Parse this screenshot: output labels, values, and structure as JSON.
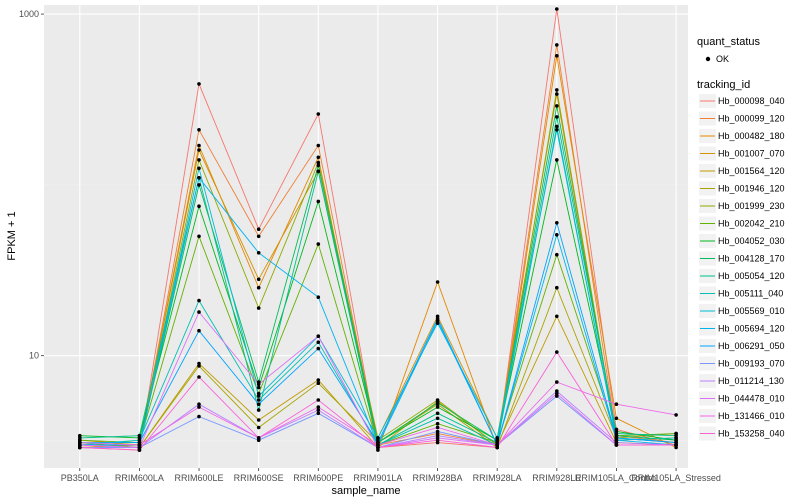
{
  "chart_data": {
    "type": "line",
    "xlabel": "sample_name",
    "ylabel": "FPKM + 1",
    "y_scale": "log10",
    "ylim": [
      2.2,
      1130
    ],
    "y_ticks": [
      {
        "value": 10,
        "label": "10"
      },
      {
        "value": 1000,
        "label": "1000"
      }
    ],
    "grid": true,
    "legend_position": "right",
    "categories": [
      "PB350LA",
      "RRIM600LA",
      "RRIM600LE",
      "RRIM600SE",
      "RRIM600PE",
      "RRIM901LA",
      "RRIM928BA",
      "RRIM928LA",
      "RRIM928LE",
      "RRIM105LA_Control",
      "RRIM105LA_Stressed"
    ],
    "quant_legend": {
      "title": "quant_status",
      "entries": [
        "OK"
      ]
    },
    "series_legend_title": "tracking_id",
    "series": [
      {
        "name": "Hb_000098_040",
        "color": "#F8766D",
        "values": [
          2.9,
          2.8,
          390,
          55,
          260,
          2.9,
          3.1,
          2.9,
          1070,
          3.7,
          3.0
        ]
      },
      {
        "name": "Hb_000099_120",
        "color": "#F07F37",
        "values": [
          3.0,
          2.9,
          210,
          50,
          170,
          3.0,
          3.5,
          3.0,
          660,
          3.4,
          3.1
        ]
      },
      {
        "name": "Hb_000482_180",
        "color": "#E38900",
        "values": [
          2.9,
          3.0,
          170,
          25,
          145,
          2.8,
          27,
          2.9,
          570,
          4.3,
          2.9
        ]
      },
      {
        "name": "Hb_001007_070",
        "color": "#D39200",
        "values": [
          3.2,
          3.0,
          160,
          28,
          120,
          3.3,
          17,
          3.3,
          340,
          3.2,
          3.3
        ]
      },
      {
        "name": "Hb_001564_120",
        "color": "#C09B00",
        "values": [
          2.9,
          2.9,
          9.0,
          4.2,
          7.2,
          2.9,
          5.4,
          3.0,
          17,
          3.1,
          3.0
        ]
      },
      {
        "name": "Hb_001946_120",
        "color": "#A8A400",
        "values": [
          3.0,
          2.9,
          8.7,
          3.8,
          6.9,
          3.1,
          5.2,
          2.9,
          25,
          3.3,
          3.5
        ]
      },
      {
        "name": "Hb_001999_230",
        "color": "#8BAB00",
        "values": [
          3.1,
          2.9,
          140,
          19,
          135,
          3.2,
          5.5,
          3.0,
          360,
          3.3,
          3.1
        ]
      },
      {
        "name": "Hb_002042_210",
        "color": "#62B200",
        "values": [
          3.2,
          3.1,
          50,
          6.0,
          45,
          3.0,
          4.0,
          3.1,
          39,
          3.4,
          3.5
        ]
      },
      {
        "name": "Hb_004052_030",
        "color": "#00B81F",
        "values": [
          3.4,
          3.3,
          75,
          6.5,
          80,
          3.1,
          5.0,
          3.2,
          140,
          3.6,
          3.2
        ]
      },
      {
        "name": "Hb_004128_170",
        "color": "#00BD5C",
        "values": [
          3.1,
          3.0,
          100,
          7.0,
          130,
          3.1,
          5.3,
          3.2,
          290,
          3.4,
          3.2
        ]
      },
      {
        "name": "Hb_005054_120",
        "color": "#00C08B",
        "values": [
          3.3,
          3.4,
          110,
          4.8,
          120,
          3.0,
          4.6,
          3.1,
          250,
          3.5,
          3.4
        ]
      },
      {
        "name": "Hb_005111_040",
        "color": "#00C1B2",
        "values": [
          3.0,
          3.2,
          21,
          5.5,
          12,
          3.0,
          4.3,
          3.0,
          220,
          3.2,
          3.3
        ]
      },
      {
        "name": "Hb_005569_010",
        "color": "#00BCD6",
        "values": [
          2.9,
          2.9,
          125,
          5.8,
          13,
          3.3,
          15.5,
          3.3,
          210,
          3.3,
          3.1
        ]
      },
      {
        "name": "Hb_005694_120",
        "color": "#00B4EF",
        "values": [
          3.0,
          3.0,
          110,
          40,
          22,
          3.0,
          16,
          3.0,
          51,
          3.2,
          3.0
        ]
      },
      {
        "name": "Hb_006291_050",
        "color": "#00A5FF",
        "values": [
          3.1,
          3.1,
          14,
          5.2,
          11,
          3.1,
          16.5,
          3.0,
          60,
          3.3,
          3.1
        ]
      },
      {
        "name": "Hb_009193_070",
        "color": "#7997FF",
        "values": [
          2.9,
          2.9,
          4.4,
          3.2,
          4.6,
          2.9,
          3.6,
          3.0,
          5.8,
          3.0,
          3.0
        ]
      },
      {
        "name": "Hb_011214_130",
        "color": "#BB81FF",
        "values": [
          3.0,
          2.9,
          5.2,
          3.3,
          4.8,
          2.9,
          3.4,
          3.0,
          6.2,
          3.1,
          3.0
        ]
      },
      {
        "name": "Hb_044478_010",
        "color": "#DC71FA",
        "values": [
          3.0,
          2.9,
          18,
          6.8,
          13,
          2.9,
          3.3,
          3.0,
          6.0,
          3.0,
          3.0
        ]
      },
      {
        "name": "Hb_131466_010",
        "color": "#EF67EB",
        "values": [
          3.1,
          3.0,
          5.0,
          3.3,
          5.0,
          3.0,
          3.8,
          3.0,
          7.0,
          5.2,
          4.5
        ]
      },
      {
        "name": "Hb_153258_040",
        "color": "#FB61D7",
        "values": [
          2.9,
          2.8,
          7.5,
          3.3,
          5.5,
          2.9,
          3.2,
          2.9,
          10.5,
          3.0,
          3.0
        ]
      }
    ]
  }
}
